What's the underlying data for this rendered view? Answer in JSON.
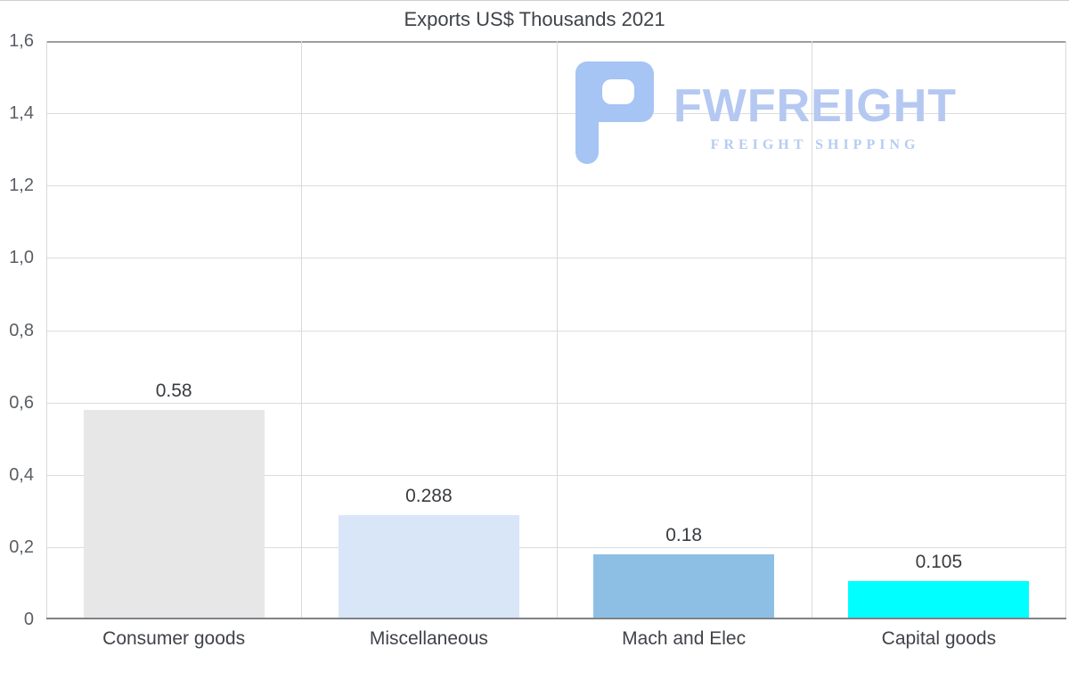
{
  "chart_data": {
    "type": "bar",
    "title": "Exports US$ Thousands 2021",
    "categories": [
      "Consumer goods",
      "Miscellaneous",
      "Mach and Elec",
      "Capital goods"
    ],
    "values": [
      0.58,
      0.288,
      0.18,
      0.105
    ],
    "value_labels": [
      "0.58",
      "0.288",
      "0.18",
      "0.105"
    ],
    "bar_colors": [
      "#e7e7e7",
      "#d9e6f8",
      "#8dbfe4",
      "#00ffff"
    ],
    "xlabel": "",
    "ylabel": "",
    "ylim": [
      0,
      1.6
    ],
    "ytick_step": 0.2,
    "ytick_labels": [
      "0",
      "0,2",
      "0,4",
      "0,6",
      "0,8",
      "1,0",
      "1,2",
      "1,4",
      "1,6"
    ],
    "grid": true,
    "legend": "none",
    "decimal_separator_axis": ","
  },
  "watermark": {
    "brand": "FWFREIGHT",
    "tagline": "FREIGHT SHIPPING",
    "glyph_color": "#a6c4f4",
    "text_color": "#b4c8f1"
  }
}
